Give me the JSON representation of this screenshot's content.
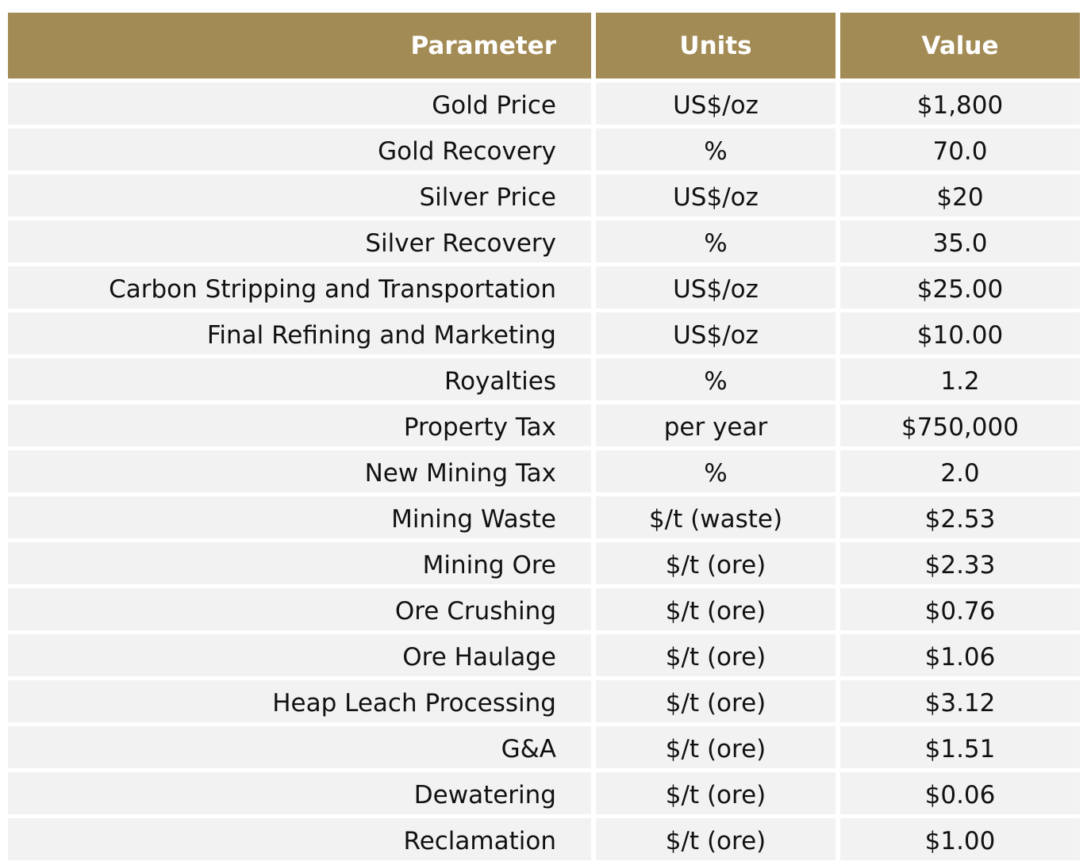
{
  "colors": {
    "header_bg": "#a38b55",
    "header_text": "#ffffff",
    "row_bg": "#f2f2f2",
    "body_text": "#111111"
  },
  "table": {
    "headers": [
      "Parameter",
      "Units",
      "Value"
    ],
    "rows": [
      [
        "Gold Price",
        "US$/oz",
        "$1,800"
      ],
      [
        "Gold Recovery",
        "%",
        "70.0"
      ],
      [
        "Silver Price",
        "US$/oz",
        "$20"
      ],
      [
        "Silver Recovery",
        "%",
        "35.0"
      ],
      [
        "Carbon Stripping and Transportation",
        "US$/oz",
        "$25.00"
      ],
      [
        "Final Refining and Marketing",
        "US$/oz",
        "$10.00"
      ],
      [
        "Royalties",
        "%",
        "1.2"
      ],
      [
        "Property Tax",
        "per year",
        "$750,000"
      ],
      [
        "New Mining Tax",
        "%",
        "2.0"
      ],
      [
        "Mining Waste",
        "$/t (waste)",
        "$2.53"
      ],
      [
        "Mining Ore",
        "$/t (ore)",
        "$2.33"
      ],
      [
        "Ore Crushing",
        "$/t (ore)",
        "$0.76"
      ],
      [
        "Ore Haulage",
        "$/t (ore)",
        "$1.06"
      ],
      [
        "Heap Leach Processing",
        "$/t (ore)",
        "$3.12"
      ],
      [
        "G&A",
        "$/t (ore)",
        "$1.51"
      ],
      [
        "Dewatering",
        "$/t (ore)",
        "$0.06"
      ],
      [
        "Reclamation",
        "$/t (ore)",
        "$1.00"
      ]
    ]
  }
}
